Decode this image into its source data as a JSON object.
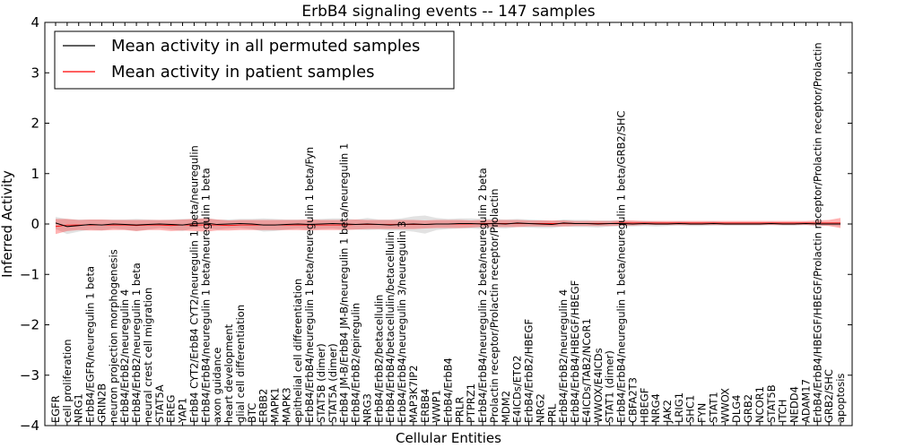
{
  "chart_data": {
    "type": "line",
    "title": "ErbB4 signaling events -- 147 samples",
    "xlabel": "Cellular Entities",
    "ylabel": "Inferred Activity",
    "ylim": [
      -4,
      4
    ],
    "yticks": [
      -4,
      -3,
      -2,
      -1,
      0,
      1,
      2,
      3,
      4
    ],
    "ytick_labels": [
      "−4",
      "−3",
      "−2",
      "−1",
      "0",
      "1",
      "2",
      "3",
      "4"
    ],
    "legend_position": "top-left",
    "categories": [
      "EGFR",
      "cell proliferation",
      "NRG1",
      "ErbB4/EGFR/neuregulin 1 beta",
      "GRIN2B",
      "neuron projection morphogenesis",
      "ErbB4/ErbB2/neuregulin 4",
      "ErbB4/ErbB2/neuregulin 1 beta",
      "neural crest cell migration",
      "STAT5A",
      "EREG",
      "YAP1",
      "ErbB4 CYT2/ErbB4 CYT2/neuregulin 1 beta/neuregulin",
      "ErbB4/ErbB4/neuregulin 1 beta/neuregulin 1 beta",
      "axon guidance",
      "heart development",
      "glial cell differentiation",
      "BTC",
      "ERBB2",
      "MAPK1",
      "MAPK3",
      "epithelial cell differentiation",
      "ErbB4/ErbB4/neuregulin 1 beta/neuregulin 1 beta/Fyn",
      "STAT5B (dimer)",
      "STAT5A (dimer)",
      "ErbB4 JM-B/ErbB4 JM-B/neuregulin 1 beta/neuregulin 1",
      "ErbB4/ErbB2/epiregulin",
      "NRG3",
      "ErbB4/ErbB2/betacellulin",
      "ErbB4/ErbB4/betacellulin/betacellulin",
      "ErbB4/ErbB4/neuregulin 3/neuregulin 3",
      "MAP3K7IP2",
      "ERBB4",
      "WWP1",
      "ErbB4/ErbB4",
      "PRLR",
      "PTPRZ1",
      "ErbB4/ErbB4/neuregulin 2 beta/neuregulin 2 beta",
      "Prolactin receptor/Prolactin receptor/Prolactin",
      "MDM2",
      "E4ICDs/ETO2",
      "ErbB4/ErbB2/HBEGF",
      "NRG2",
      "PRL",
      "ErbB4/ErbB2/neuregulin 4",
      "ErbB4/ErbB4/HBEGF/HBEGF",
      "E4ICDs/TAB2/NCoR1",
      "WWOX/E4ICDs",
      "STAT1 (dimer)",
      "ErbB4/ErbB4/neuregulin 1 beta/neuregulin 1 beta/GRB2/SHC",
      "CBFA2T3",
      "HBEGF",
      "NRG4",
      "JAK2",
      "LRIG1",
      "SHC1",
      "FYN",
      "STAT1",
      "WWOX",
      "DLG4",
      "GRB2",
      "NCOR1",
      "STAT5B",
      "ITCH",
      "NEDD4",
      "ADAM17",
      "ErbB4/ErbB4/HBEGF/HBEGF/Prolactin receptor/Prolactin receptor/Prolactin",
      "GRB2/SHC",
      "apoptosis"
    ],
    "series": [
      {
        "name": "Mean activity in all permuted samples",
        "color": "#000000",
        "values": [
          0.02,
          -0.05,
          -0.03,
          -0.01,
          -0.02,
          0.0,
          -0.01,
          -0.02,
          -0.01,
          0.0,
          -0.01,
          -0.02,
          0.01,
          0.02,
          -0.01,
          0.0,
          0.01,
          0.0,
          -0.02,
          -0.02,
          -0.01,
          0.0,
          -0.01,
          0.0,
          0.01,
          0.0,
          -0.01,
          0.0,
          -0.01,
          -0.02,
          -0.01,
          0.0,
          -0.01,
          0.0,
          0.0,
          0.01,
          0.01,
          0.0,
          0.01,
          0.0,
          0.02,
          0.01,
          0.0,
          -0.01,
          0.02,
          0.01,
          0.01,
          0.0,
          0.01,
          0.01,
          0.0,
          0.01,
          0.0,
          0.0,
          0.01,
          0.0,
          0.0,
          0.01,
          0.0,
          0.0,
          0.0,
          0.0,
          0.01,
          0.0,
          0.0,
          0.01,
          0.0,
          0.0,
          0.0
        ],
        "spread": [
          0.12,
          0.15,
          0.12,
          0.1,
          0.11,
          0.09,
          0.1,
          0.12,
          0.1,
          0.08,
          0.1,
          0.12,
          0.09,
          0.1,
          0.1,
          0.09,
          0.09,
          0.1,
          0.13,
          0.12,
          0.1,
          0.09,
          0.1,
          0.1,
          0.1,
          0.11,
          0.1,
          0.12,
          0.1,
          0.11,
          0.12,
          0.15,
          0.18,
          0.12,
          0.1,
          0.1,
          0.1,
          0.1,
          0.09,
          0.09,
          0.08,
          0.08,
          0.08,
          0.07,
          0.07,
          0.07,
          0.07,
          0.07,
          0.06,
          0.06,
          0.05,
          0.05,
          0.05,
          0.04,
          0.04,
          0.04,
          0.04,
          0.04,
          0.03,
          0.03,
          0.03,
          0.03,
          0.03,
          0.03,
          0.03,
          0.03,
          0.03,
          0.03,
          0.04
        ]
      },
      {
        "name": "Mean activity in patient samples",
        "color": "#ff0000",
        "values": [
          -0.05,
          -0.02,
          -0.02,
          -0.02,
          -0.02,
          -0.02,
          -0.02,
          -0.03,
          -0.02,
          -0.02,
          -0.03,
          -0.02,
          -0.02,
          -0.02,
          -0.02,
          -0.03,
          -0.02,
          -0.02,
          -0.02,
          -0.02,
          -0.02,
          -0.02,
          -0.02,
          -0.02,
          -0.02,
          -0.02,
          -0.01,
          -0.01,
          -0.01,
          -0.01,
          -0.01,
          -0.01,
          -0.01,
          0.0,
          0.0,
          0.0,
          0.0,
          0.01,
          0.01,
          0.01,
          0.01,
          0.01,
          0.01,
          0.01,
          0.01,
          0.01,
          0.01,
          0.01,
          0.01,
          0.02,
          0.02,
          0.02,
          0.02,
          0.02,
          0.02,
          0.02,
          0.02,
          0.02,
          0.02,
          0.02,
          0.02,
          0.02,
          0.02,
          0.02,
          0.02,
          0.02,
          0.02,
          0.02,
          0.02
        ],
        "spread": [
          0.15,
          0.12,
          0.1,
          0.11,
          0.11,
          0.1,
          0.1,
          0.11,
          0.1,
          0.1,
          0.11,
          0.11,
          0.12,
          0.13,
          0.11,
          0.1,
          0.1,
          0.1,
          0.1,
          0.1,
          0.1,
          0.1,
          0.11,
          0.1,
          0.1,
          0.1,
          0.1,
          0.09,
          0.09,
          0.09,
          0.09,
          0.09,
          0.08,
          0.08,
          0.08,
          0.08,
          0.07,
          0.07,
          0.07,
          0.07,
          0.07,
          0.06,
          0.06,
          0.06,
          0.06,
          0.05,
          0.05,
          0.05,
          0.05,
          0.05,
          0.05,
          0.04,
          0.04,
          0.04,
          0.04,
          0.04,
          0.04,
          0.04,
          0.04,
          0.04,
          0.04,
          0.04,
          0.04,
          0.04,
          0.04,
          0.04,
          0.05,
          0.06,
          0.1
        ]
      }
    ]
  }
}
